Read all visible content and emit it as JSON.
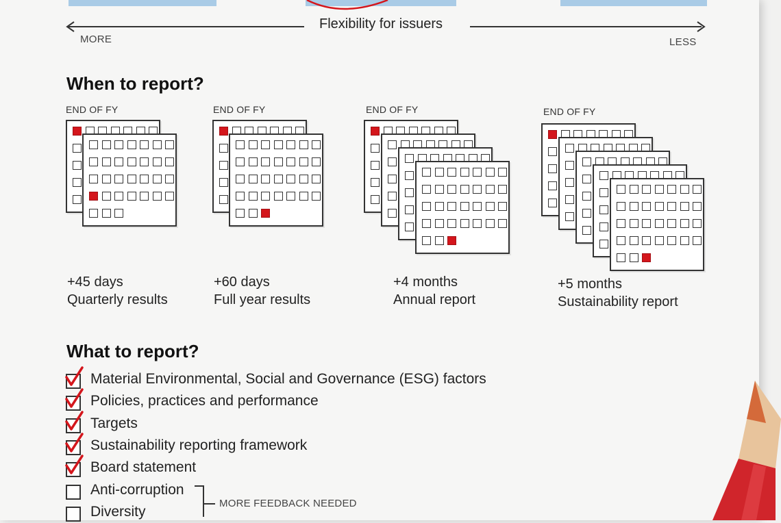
{
  "flexibility": {
    "label": "Flexibility for issuers",
    "more": "MORE",
    "less": "LESS"
  },
  "when_section": {
    "title": "When to report?",
    "columns": [
      {
        "header": "END OF FY",
        "days": "+45 days",
        "report": "Quarterly results",
        "sheets": 2
      },
      {
        "header": "END OF FY",
        "days": "+60 days",
        "report": "Full year results",
        "sheets": 2
      },
      {
        "header": "END OF FY",
        "days": "+4 months",
        "report": "Annual report",
        "sheets": 4
      },
      {
        "header": "END OF FY",
        "days": "+5 months",
        "report": "Sustainability report",
        "sheets": 5
      }
    ]
  },
  "what_section": {
    "title": "What to report?",
    "items": [
      {
        "label": "Material Environmental, Social and Governance (ESG) factors",
        "checked": true
      },
      {
        "label": "Policies, practices and performance",
        "checked": true
      },
      {
        "label": "Targets",
        "checked": true
      },
      {
        "label": "Sustainability reporting framework",
        "checked": true
      },
      {
        "label": "Board statement",
        "checked": true
      },
      {
        "label": "Anti-corruption",
        "checked": false
      },
      {
        "label": "Diversity",
        "checked": false
      }
    ],
    "feedback_note": "MORE FEEDBACK NEEDED"
  },
  "colors": {
    "accent_red": "#d4161c",
    "bar_blue": "#a9cbe6",
    "pencil_red": "#d0252b"
  }
}
